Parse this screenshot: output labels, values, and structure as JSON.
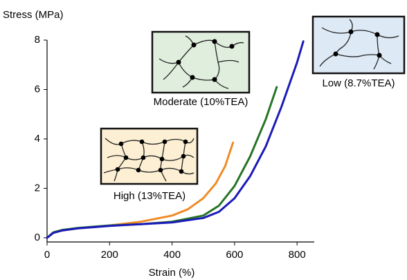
{
  "chart_data": {
    "type": "line",
    "xlabel": "Strain (%)",
    "ylabel": "Stress (MPa)",
    "xlim": [
      0,
      855
    ],
    "ylim": [
      -0.17,
      8
    ],
    "xticks": [
      0,
      200,
      400,
      600,
      800
    ],
    "yticks": [
      0,
      2,
      4,
      6,
      8
    ],
    "grid": false,
    "series": [
      {
        "name": "High (13%TEA)",
        "color": "#f08a24",
        "x": [
          0,
          20,
          50,
          100,
          200,
          300,
          400,
          450,
          500,
          540,
          570,
          595
        ],
        "values": [
          0,
          0.2,
          0.3,
          0.38,
          0.5,
          0.65,
          0.9,
          1.15,
          1.6,
          2.2,
          2.9,
          3.85
        ]
      },
      {
        "name": "Moderate (10%TEA)",
        "color": "#267326",
        "x": [
          0,
          20,
          50,
          100,
          200,
          300,
          400,
          500,
          550,
          600,
          650,
          700,
          735
        ],
        "values": [
          0,
          0.22,
          0.32,
          0.4,
          0.5,
          0.55,
          0.65,
          0.9,
          1.3,
          2.1,
          3.3,
          4.8,
          6.1
        ]
      },
      {
        "name": "Low (8.7%TEA)",
        "color": "#1a1ab8",
        "x": [
          0,
          20,
          50,
          100,
          200,
          300,
          400,
          500,
          550,
          600,
          650,
          700,
          750,
          800,
          820
        ],
        "values": [
          0,
          0.2,
          0.3,
          0.38,
          0.48,
          0.55,
          0.62,
          0.8,
          1.05,
          1.6,
          2.5,
          3.7,
          5.3,
          7.1,
          7.95
        ]
      }
    ]
  }
}
